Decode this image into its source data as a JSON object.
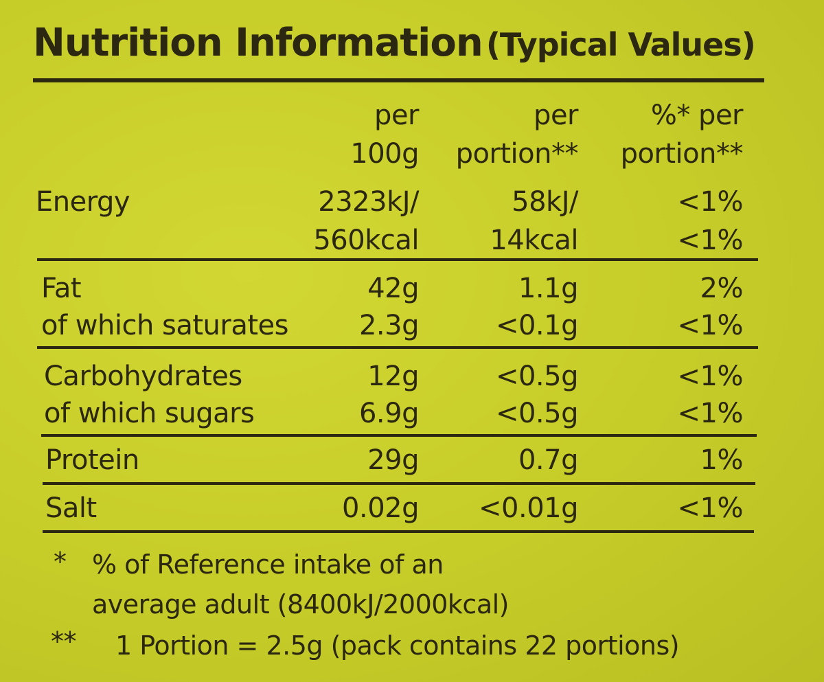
{
  "title": {
    "main": "Nutrition Information",
    "sub": "(Typical Values)"
  },
  "headers": {
    "per_100g_line1": "per",
    "per_100g_line2": "100g",
    "per_portion_line1": "per",
    "per_portion_line2": "portion**",
    "pct_portion_line1": "%* per",
    "pct_portion_line2": "portion**"
  },
  "rows": {
    "energy": {
      "label": "Energy",
      "per100_kj": "2323kJ/",
      "per100_kcal": "560kcal",
      "portion_kj": "58kJ/",
      "portion_kcal": "14kcal",
      "pct_kj": "<1%",
      "pct_kcal": "<1%"
    },
    "fat": {
      "label": "Fat",
      "per100": "42g",
      "portion": "1.1g",
      "pct": "2%"
    },
    "saturates": {
      "label": "of which saturates",
      "per100": "2.3g",
      "portion": "<0.1g",
      "pct": "<1%"
    },
    "carbohydrates": {
      "label": "Carbohydrates",
      "per100": "12g",
      "portion": "<0.5g",
      "pct": "<1%"
    },
    "sugars": {
      "label": "of which sugars",
      "per100": "6.9g",
      "portion": "<0.5g",
      "pct": "<1%"
    },
    "protein": {
      "label": "Protein",
      "per100": "29g",
      "portion": "0.7g",
      "pct": "1%"
    },
    "salt": {
      "label": "Salt",
      "per100": "0.02g",
      "portion": "<0.01g",
      "pct": "<1%"
    }
  },
  "footnotes": {
    "star_marker": "*",
    "star_line1": "% of Reference intake of an",
    "star_line2": "average adult (8400kJ/2000kcal)",
    "double_star_marker": "**",
    "double_star_text": "1 Portion = 2.5g (pack contains 22 portions)"
  }
}
